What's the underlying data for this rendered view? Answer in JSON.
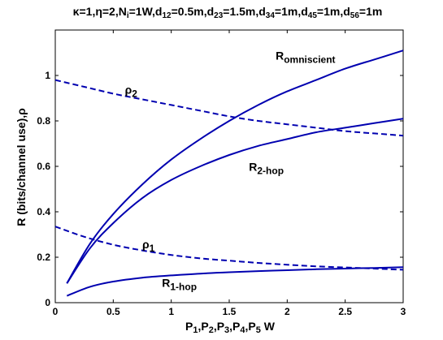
{
  "chart_data": {
    "type": "line",
    "title": {
      "parts": [
        {
          "t": "κ=1,η=2,N"
        },
        {
          "t": "i",
          "sub": true
        },
        {
          "t": "=1W,d"
        },
        {
          "t": "12",
          "sub": true
        },
        {
          "t": "=0.5m,d"
        },
        {
          "t": "23",
          "sub": true
        },
        {
          "t": "=1.5m,d"
        },
        {
          "t": "34",
          "sub": true
        },
        {
          "t": "=1m,d"
        },
        {
          "t": "45",
          "sub": true
        },
        {
          "t": "=1m,d"
        },
        {
          "t": "56",
          "sub": true
        },
        {
          "t": "=1m"
        }
      ]
    },
    "xlabel": {
      "parts": [
        {
          "t": "P"
        },
        {
          "t": "1",
          "sub": true
        },
        {
          "t": ",P"
        },
        {
          "t": "2",
          "sub": true
        },
        {
          "t": ",P"
        },
        {
          "t": "3",
          "sub": true
        },
        {
          "t": ",P"
        },
        {
          "t": "4",
          "sub": true
        },
        {
          "t": ",P"
        },
        {
          "t": "5",
          "sub": true
        },
        {
          "t": " W"
        }
      ]
    },
    "ylabel": "R (bits/channel use),ρ",
    "xlim": [
      0,
      3
    ],
    "ylim": [
      0,
      1.2
    ],
    "xticks": [
      "0",
      "0.5",
      "1",
      "1.5",
      "2",
      "2.5",
      "3"
    ],
    "yticks": [
      "0",
      "0.2",
      "0.4",
      "0.6",
      "0.8",
      "1"
    ],
    "grid": false,
    "line_color": "#0000b0",
    "series": [
      {
        "name": "R_omniscient",
        "style": "solid",
        "x": [
          0.1,
          0.3,
          0.5,
          0.75,
          1.0,
          1.25,
          1.5,
          1.75,
          2.0,
          2.25,
          2.5,
          2.75,
          3.0
        ],
        "y": [
          0.085,
          0.26,
          0.39,
          0.52,
          0.63,
          0.72,
          0.8,
          0.87,
          0.93,
          0.98,
          1.03,
          1.07,
          1.11
        ]
      },
      {
        "name": "R_2-hop",
        "style": "solid",
        "x": [
          0.1,
          0.3,
          0.5,
          0.75,
          1.0,
          1.25,
          1.5,
          1.75,
          2.0,
          2.25,
          2.5,
          2.75,
          3.0
        ],
        "y": [
          0.085,
          0.24,
          0.35,
          0.46,
          0.54,
          0.6,
          0.65,
          0.69,
          0.72,
          0.75,
          0.77,
          0.79,
          0.81
        ]
      },
      {
        "name": "ρ_2",
        "style": "dashed",
        "x": [
          0.0,
          0.25,
          0.5,
          0.75,
          1.0,
          1.25,
          1.5,
          1.75,
          2.0,
          2.25,
          2.5,
          2.75,
          3.0
        ],
        "y": [
          0.98,
          0.95,
          0.92,
          0.895,
          0.87,
          0.845,
          0.82,
          0.8,
          0.785,
          0.77,
          0.755,
          0.745,
          0.735
        ]
      },
      {
        "name": "ρ_1",
        "style": "dashed",
        "x": [
          0.0,
          0.25,
          0.5,
          0.75,
          1.0,
          1.25,
          1.5,
          1.75,
          2.0,
          2.25,
          2.5,
          2.75,
          3.0
        ],
        "y": [
          0.335,
          0.29,
          0.255,
          0.23,
          0.21,
          0.195,
          0.185,
          0.175,
          0.167,
          0.16,
          0.155,
          0.15,
          0.145
        ]
      },
      {
        "name": "R_1-hop",
        "style": "solid",
        "x": [
          0.1,
          0.3,
          0.5,
          0.75,
          1.0,
          1.25,
          1.5,
          1.75,
          2.0,
          2.25,
          2.5,
          2.75,
          3.0
        ],
        "y": [
          0.03,
          0.07,
          0.093,
          0.11,
          0.12,
          0.128,
          0.134,
          0.139,
          0.143,
          0.147,
          0.15,
          0.153,
          0.156
        ]
      }
    ],
    "annotations": [
      {
        "main": "R",
        "sub": "omniscient",
        "x": 1.9,
        "y": 1.07
      },
      {
        "main": "ρ",
        "sub": "2",
        "x": 0.6,
        "y": 0.92
      },
      {
        "main": "R",
        "sub": "2-hop",
        "x": 1.67,
        "y": 0.58
      },
      {
        "main": "ρ",
        "sub": "1",
        "x": 0.75,
        "y": 0.24
      },
      {
        "main": "R",
        "sub": "1-hop",
        "x": 0.92,
        "y": 0.07
      }
    ]
  }
}
